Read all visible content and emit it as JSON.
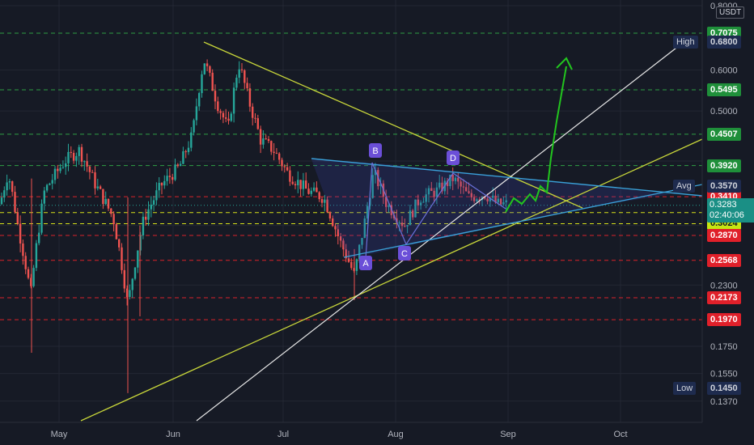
{
  "chart_data": {
    "type": "candlestick",
    "currency": "USDT",
    "x_ticks": [
      "May",
      "Jun",
      "Jul",
      "Aug",
      "Sep",
      "Oct"
    ],
    "y_ticks": [
      "0.8000",
      "0.6000",
      "0.5000",
      "0.2300",
      "0.1750",
      "0.1550",
      "0.1370"
    ],
    "levels": [
      {
        "label": "0.7075",
        "value": 0.7075,
        "color": "#1a9a3a",
        "style": "dashed-green"
      },
      {
        "label": "0.5495",
        "value": 0.5495,
        "color": "#1a9a3a",
        "style": "dashed-green"
      },
      {
        "label": "0.4507",
        "value": 0.4507,
        "color": "#1a9a3a",
        "style": "dashed-green"
      },
      {
        "label": "0.3920",
        "value": 0.392,
        "color": "#1a9a3a",
        "style": "dashed-green"
      },
      {
        "label": "0.3410",
        "value": 0.341,
        "color": "#e02020",
        "style": "dashed-red"
      },
      {
        "label": "0.3178",
        "value": 0.3178,
        "color": "#d4e000",
        "style": "dashed-yellow"
      },
      {
        "label": "0.3024",
        "value": 0.3024,
        "color": "#d4e000",
        "style": "dashed-yellow"
      },
      {
        "label": "0.2870",
        "value": 0.287,
        "color": "#e02020",
        "style": "dashed-red"
      },
      {
        "label": "0.2568",
        "value": 0.2568,
        "color": "#e02020",
        "style": "dashed-red"
      },
      {
        "label": "0.2173",
        "value": 0.2173,
        "color": "#e02020",
        "style": "dashed-red"
      },
      {
        "label": "0.1970",
        "value": 0.197,
        "color": "#e02020",
        "style": "dashed-red"
      }
    ],
    "markers": [
      {
        "label": "High",
        "value": "0.6800"
      },
      {
        "label": "Avg",
        "value": "0.3570"
      },
      {
        "label": "Low",
        "value": "0.1450"
      }
    ],
    "current_price": "0.3283",
    "countdown": "02:40:06",
    "pattern_points": [
      "A",
      "B",
      "C",
      "D"
    ]
  }
}
